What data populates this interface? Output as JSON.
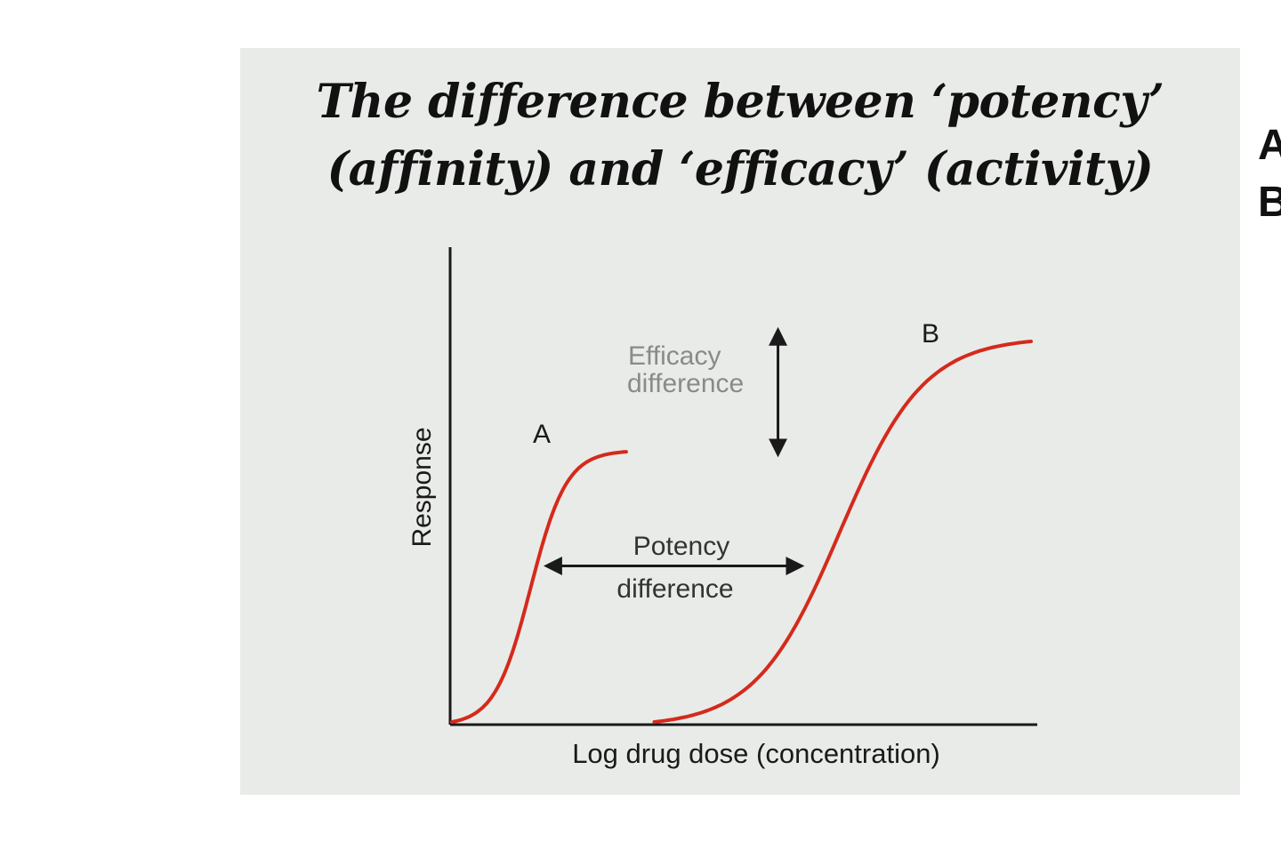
{
  "chart_data": {
    "type": "line",
    "title": "The difference between ‘potency’ (affinity) and ‘efficacy’ (activity)",
    "title_lines": [
      "The difference between ‘potency’",
      "(affinity) and ‘efficacy’ (activity)"
    ],
    "xlabel": "Log drug dose (concentration)",
    "ylabel": "Response",
    "xlim": [
      0,
      100
    ],
    "ylim": [
      0,
      100
    ],
    "grid": false,
    "series": [
      {
        "name": "A",
        "color": "#d42a1c",
        "x_start": 0,
        "x_end": 31,
        "ec50": 14,
        "max_response": 71,
        "slope": 3.2
      },
      {
        "name": "B",
        "color": "#d42a1c",
        "x_start": 36,
        "x_end": 103,
        "ec50": 69,
        "max_response": 100,
        "slope": 7.5
      }
    ],
    "annotations": [
      {
        "id": "efficacy",
        "lines": [
          "Efficacy",
          "difference"
        ],
        "color": "#8a8a8a",
        "arrow": "vertical",
        "x": 58,
        "y_from": 71,
        "y_to": 100
      },
      {
        "id": "potency",
        "lines": [
          "Potency",
          "difference"
        ],
        "color": "#333333",
        "arrow": "horizontal",
        "y": 41,
        "x_from": 16,
        "x_to": 63
      }
    ]
  },
  "side_labels": [
    "A",
    "B"
  ],
  "colors": {
    "panel_bg": "#e9ebe8",
    "axis": "#1a1a1a",
    "curve": "#d42a1c"
  }
}
